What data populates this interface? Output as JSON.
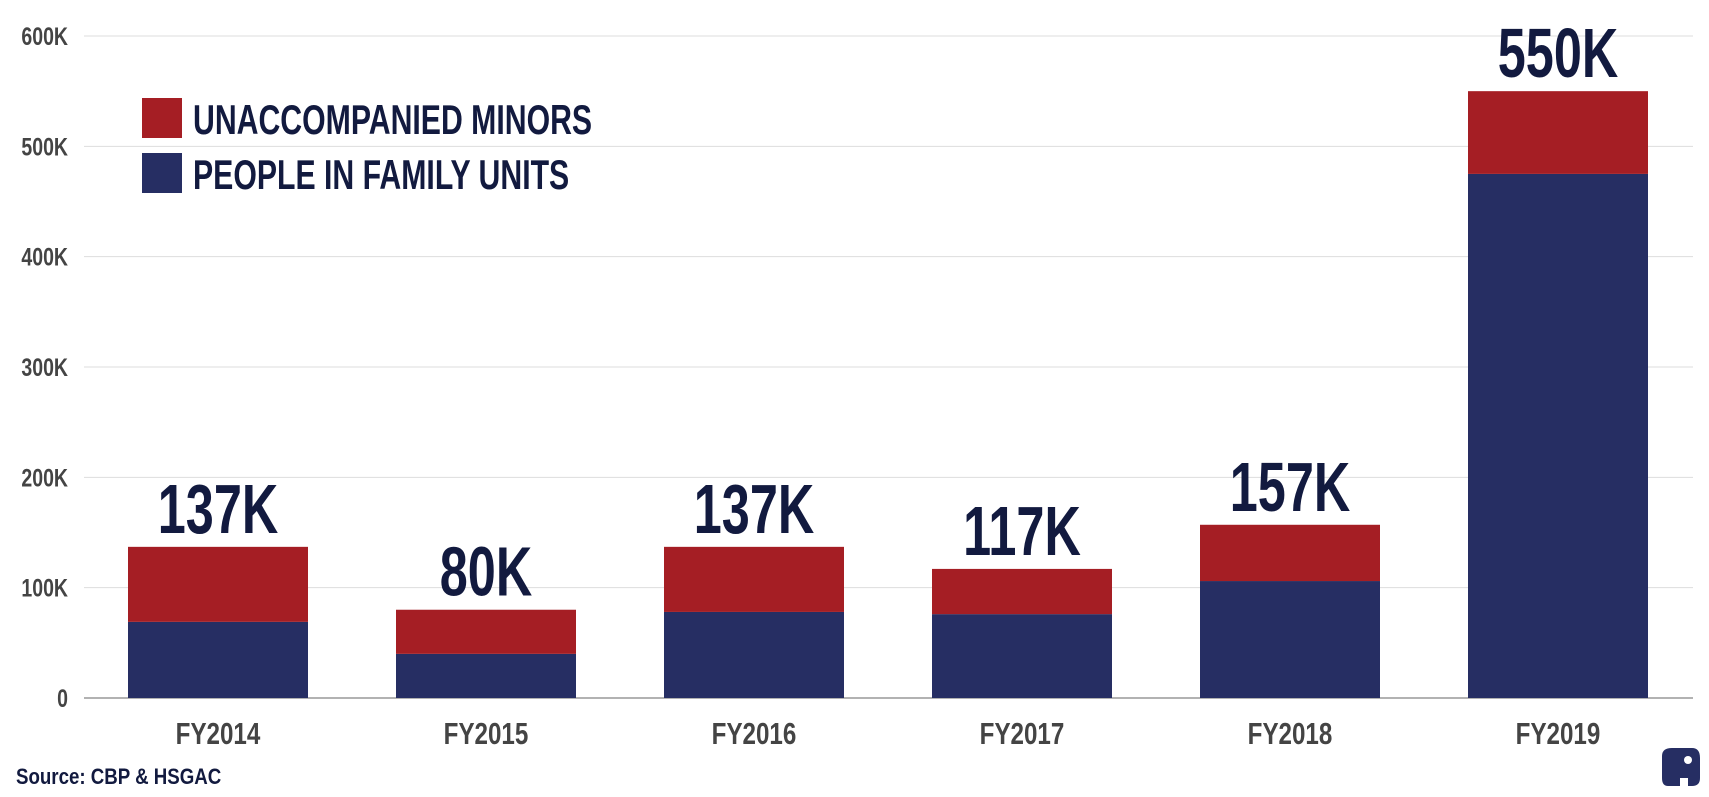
{
  "chart_data": {
    "type": "stacked-bar",
    "source": "Source: CBP & HSGAC",
    "categories": [
      "FY2014",
      "FY2015",
      "FY2016",
      "FY2017",
      "FY2018",
      "FY2019"
    ],
    "series": [
      {
        "name": "PEOPLE IN FAMILY UNITS",
        "color": "#262e63",
        "values": [
          69000,
          40000,
          78000,
          76000,
          106000,
          475000
        ]
      },
      {
        "name": "UNACCOMPANIED MINORS",
        "color": "#a51e24",
        "values": [
          68000,
          40000,
          59000,
          41000,
          51000,
          75000
        ]
      }
    ],
    "totals": {
      "values": [
        137000,
        80000,
        137000,
        117000,
        157000,
        550000
      ],
      "value_labels": [
        "137K",
        "80K",
        "137K",
        "117K",
        "157K",
        "550K"
      ]
    },
    "ylim": [
      0,
      600000
    ],
    "yticks": [
      0,
      {
        "value": 100000,
        "label": "100K"
      },
      {
        "value": 200000,
        "label": "200K"
      },
      {
        "value": 300000,
        "label": "300K"
      },
      {
        "value": 400000,
        "label": "400K"
      },
      {
        "value": 500000,
        "label": "500K"
      },
      {
        "value": 600000,
        "label": "600K"
      }
    ],
    "grid": true,
    "legend": "upper left"
  }
}
